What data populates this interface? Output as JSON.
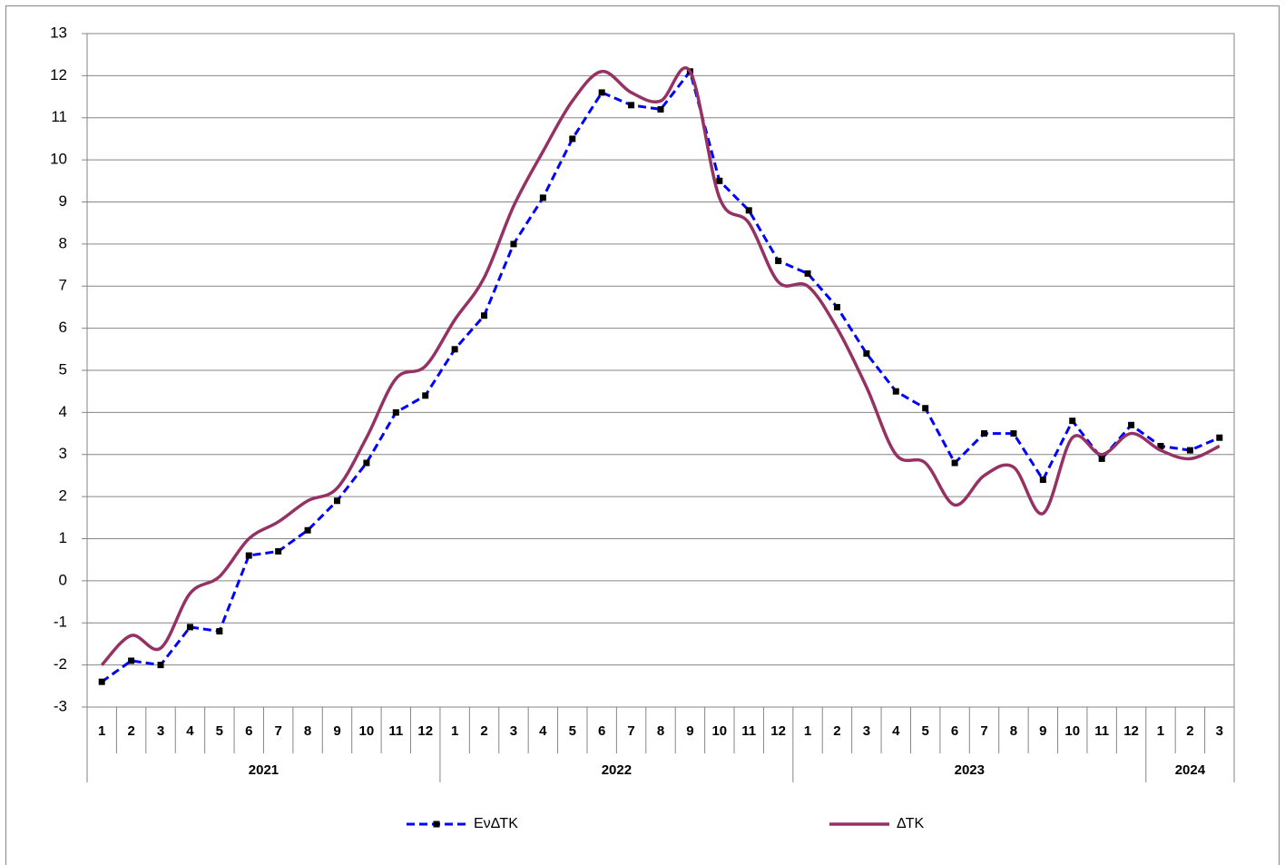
{
  "chart_data": {
    "type": "line",
    "groups": [
      {
        "name": "2021",
        "categories": [
          "1",
          "2",
          "3",
          "4",
          "5",
          "6",
          "7",
          "8",
          "9",
          "10",
          "11",
          "12"
        ]
      },
      {
        "name": "2022",
        "categories": [
          "1",
          "2",
          "3",
          "4",
          "5",
          "6",
          "7",
          "8",
          "9",
          "10",
          "11",
          "12"
        ]
      },
      {
        "name": "2023",
        "categories": [
          "1",
          "2",
          "3",
          "4",
          "5",
          "6",
          "7",
          "8",
          "9",
          "10",
          "11",
          "12"
        ]
      },
      {
        "name": "2024",
        "categories": [
          "1",
          "2",
          "3"
        ]
      }
    ],
    "series": [
      {
        "name": "EνΔΤΚ",
        "color": "#0000ff",
        "style": "dashed",
        "marker": "square",
        "marker_color": "#000000",
        "values": [
          -2.4,
          -1.9,
          -2.0,
          -1.1,
          -1.2,
          0.6,
          0.7,
          1.2,
          1.9,
          2.8,
          4.0,
          4.4,
          5.5,
          6.3,
          8.0,
          9.1,
          10.5,
          11.6,
          11.3,
          11.2,
          12.1,
          9.5,
          8.8,
          7.6,
          7.3,
          6.5,
          5.4,
          4.5,
          4.1,
          2.8,
          3.5,
          3.5,
          2.4,
          3.8,
          2.9,
          3.7,
          3.2,
          3.1,
          3.4
        ]
      },
      {
        "name": "ΔΤΚ",
        "color": "#953163",
        "style": "smooth",
        "values": [
          -2.0,
          -1.3,
          -1.6,
          -0.3,
          0.1,
          1.0,
          1.4,
          1.9,
          2.2,
          3.4,
          4.8,
          5.1,
          6.2,
          7.2,
          8.9,
          10.2,
          11.4,
          12.1,
          11.6,
          11.4,
          12.1,
          9.1,
          8.5,
          7.1,
          7.0,
          6.0,
          4.6,
          3.0,
          2.8,
          1.8,
          2.5,
          2.7,
          1.6,
          3.4,
          3.0,
          3.5,
          3.1,
          2.9,
          3.2
        ]
      }
    ],
    "ylim": [
      -3,
      13
    ],
    "yticks": [
      -3,
      -2,
      -1,
      0,
      1,
      2,
      3,
      4,
      5,
      6,
      7,
      8,
      9,
      10,
      11,
      12,
      13
    ],
    "grid": true
  }
}
